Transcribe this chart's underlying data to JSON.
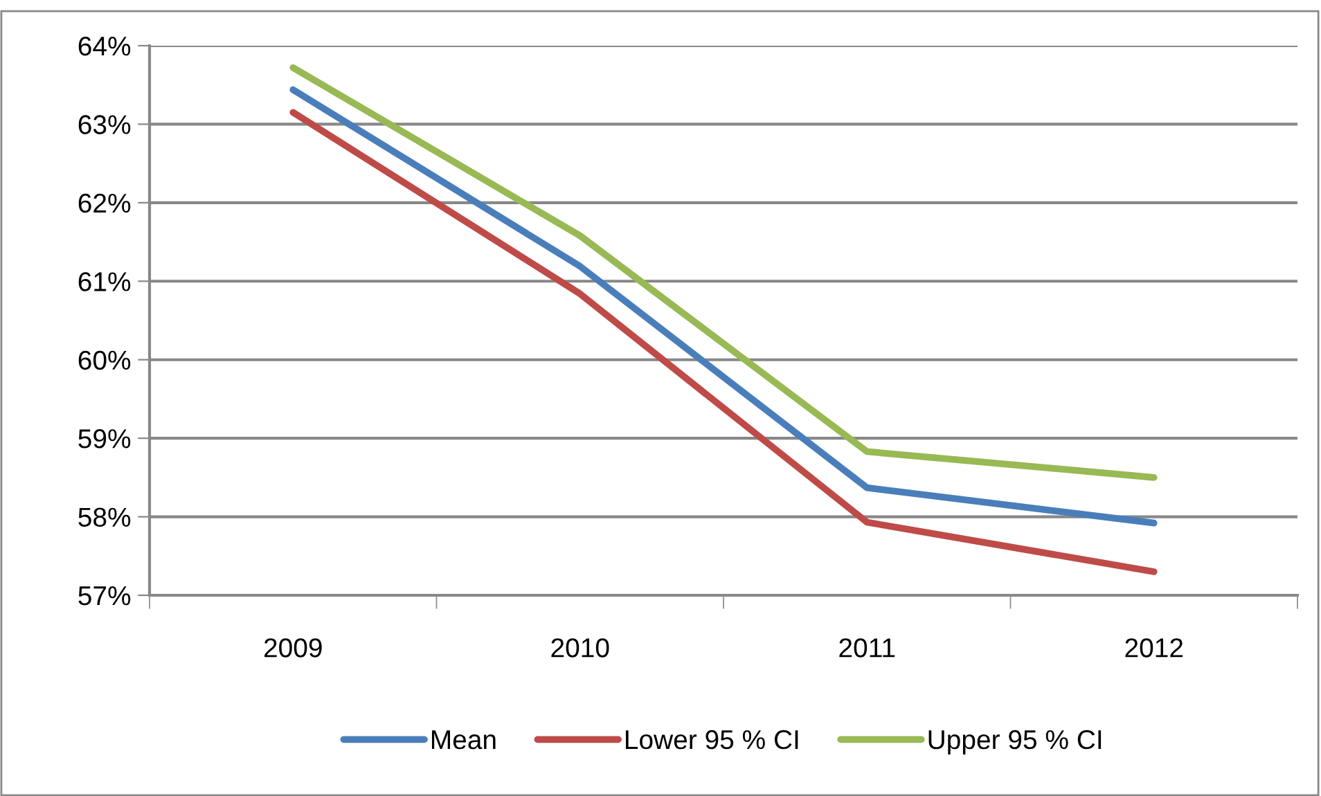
{
  "chart_data": {
    "type": "line",
    "categories": [
      "2009",
      "2010",
      "2011",
      "2012"
    ],
    "series": [
      {
        "name": "Mean",
        "color": "#4a7ebb",
        "values": [
          63.44,
          61.19,
          58.37,
          57.92
        ]
      },
      {
        "name": "Lower 95 % CI",
        "color": "#be4b48",
        "values": [
          63.15,
          60.84,
          57.93,
          57.3
        ]
      },
      {
        "name": "Upper 95 % CI",
        "color": "#98b954",
        "values": [
          63.72,
          61.58,
          58.83,
          58.5
        ]
      }
    ],
    "ylim": [
      57,
      64
    ],
    "yticks": [
      {
        "value": 57,
        "label": "57%"
      },
      {
        "value": 58,
        "label": "58%"
      },
      {
        "value": 59,
        "label": "59%"
      },
      {
        "value": 60,
        "label": "60%"
      },
      {
        "value": 61,
        "label": "61%"
      },
      {
        "value": 62,
        "label": "62%"
      },
      {
        "value": 63,
        "label": "63%"
      },
      {
        "value": 64,
        "label": "64%"
      }
    ],
    "grid": "y",
    "legend": "bottom",
    "marker": "none",
    "line_style": "solid"
  }
}
